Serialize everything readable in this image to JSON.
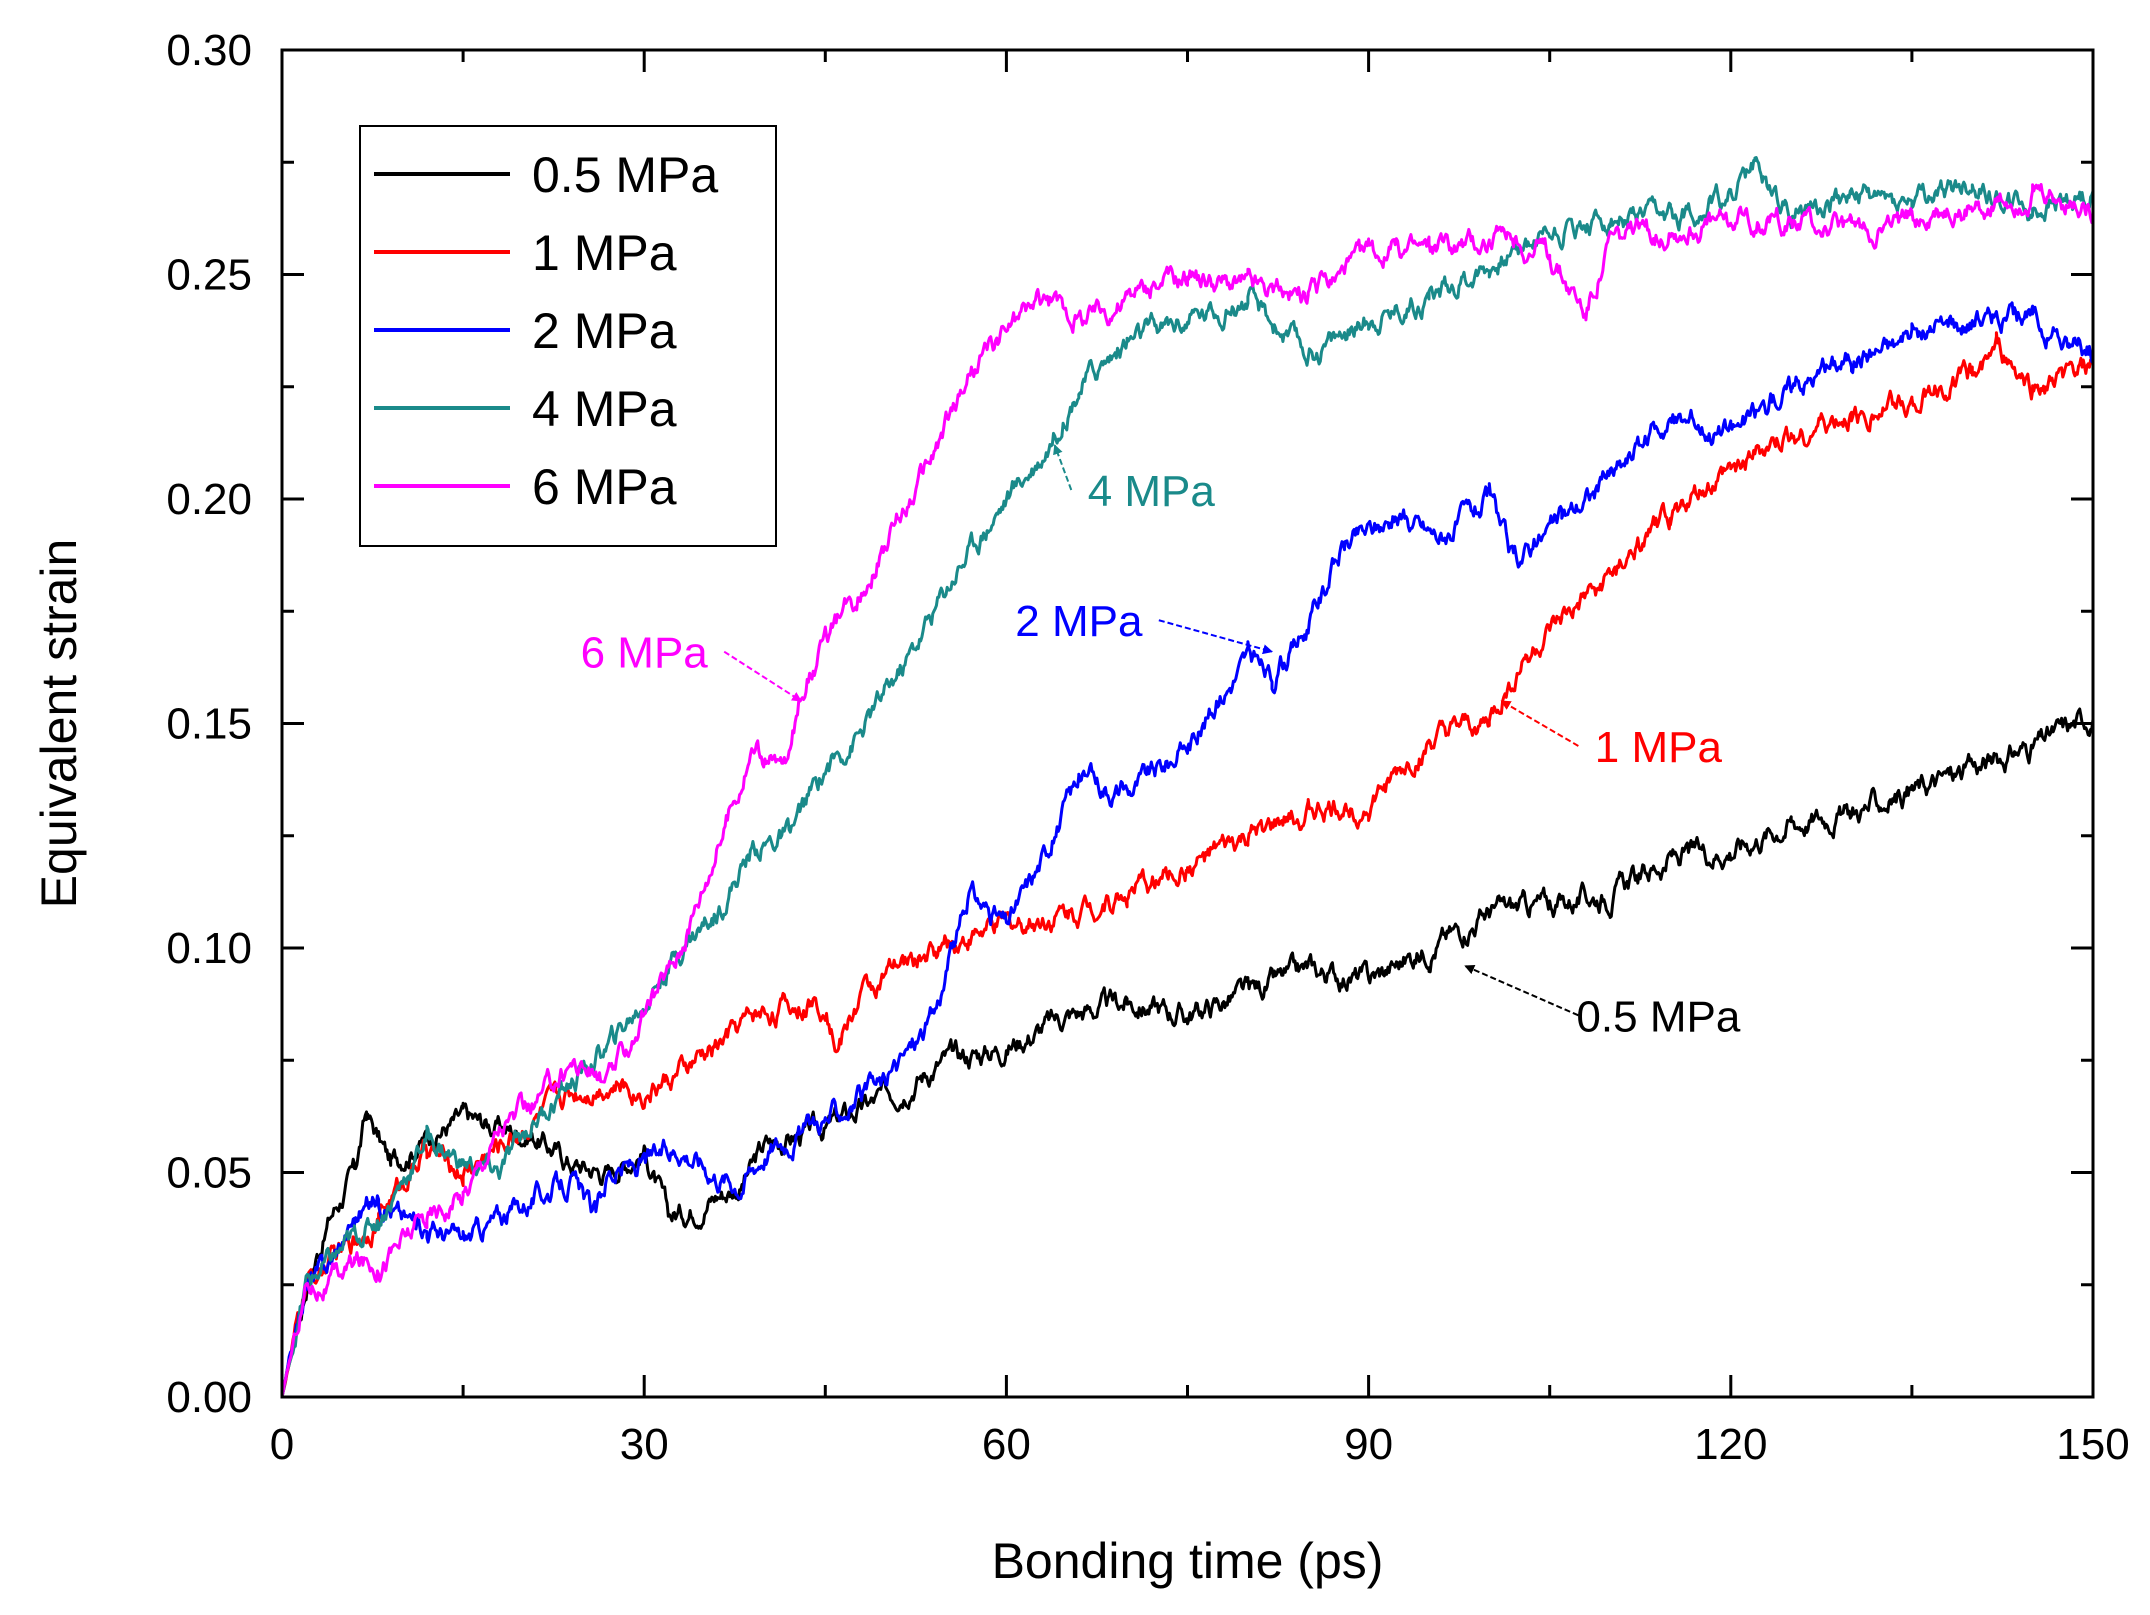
{
  "chart_data": {
    "type": "line",
    "title": "",
    "xlabel": "Bonding time (ps)",
    "ylabel": "Equivalent strain",
    "xlim": [
      0,
      150
    ],
    "ylim": [
      0,
      0.3
    ],
    "xticks": [
      0,
      30,
      60,
      90,
      120,
      150
    ],
    "xtick_labels": [
      "0",
      "30",
      "60",
      "90",
      "120",
      "150"
    ],
    "yticks": [
      0,
      0.05,
      0.1,
      0.15,
      0.2,
      0.25,
      0.3
    ],
    "ytick_labels": [
      "0.00",
      "0.05",
      "0.10",
      "0.15",
      "0.20",
      "0.25",
      "0.30"
    ],
    "grid": false,
    "legend_position": "top-left",
    "series": [
      {
        "name": "0.5 MPa",
        "color": "#000000",
        "x": [
          0,
          2,
          4,
          6,
          7,
          9,
          12,
          15,
          18,
          21,
          24,
          27,
          30,
          32,
          34,
          36,
          38,
          40,
          45,
          50,
          55,
          60,
          65,
          70,
          75,
          80,
          85,
          90,
          95,
          100,
          105,
          110,
          115,
          120,
          125,
          130,
          135,
          140,
          145,
          150
        ],
        "y": [
          0,
          0.025,
          0.04,
          0.05,
          0.063,
          0.052,
          0.058,
          0.062,
          0.06,
          0.058,
          0.052,
          0.05,
          0.055,
          0.04,
          0.042,
          0.045,
          0.047,
          0.056,
          0.06,
          0.067,
          0.075,
          0.078,
          0.085,
          0.088,
          0.085,
          0.09,
          0.095,
          0.093,
          0.1,
          0.108,
          0.11,
          0.112,
          0.12,
          0.122,
          0.128,
          0.13,
          0.135,
          0.14,
          0.145,
          0.152
        ]
      },
      {
        "name": "1 MPa",
        "color": "#ff0000",
        "x": [
          0,
          2,
          4,
          6,
          8,
          10,
          12,
          15,
          18,
          21,
          24,
          27,
          30,
          33,
          36,
          39,
          42,
          45,
          46,
          48,
          52,
          56,
          60,
          65,
          70,
          75,
          80,
          85,
          90,
          95,
          100,
          103,
          106,
          110,
          115,
          120,
          125,
          130,
          135,
          140,
          142,
          145,
          150
        ],
        "y": [
          0,
          0.025,
          0.03,
          0.035,
          0.04,
          0.048,
          0.055,
          0.05,
          0.056,
          0.062,
          0.068,
          0.07,
          0.068,
          0.072,
          0.078,
          0.085,
          0.087,
          0.088,
          0.078,
          0.09,
          0.097,
          0.102,
          0.105,
          0.108,
          0.112,
          0.118,
          0.124,
          0.13,
          0.132,
          0.145,
          0.15,
          0.165,
          0.172,
          0.182,
          0.196,
          0.206,
          0.214,
          0.218,
          0.222,
          0.228,
          0.233,
          0.224,
          0.23
        ]
      },
      {
        "name": "2 MPa",
        "color": "#0000ff",
        "x": [
          0,
          2,
          4,
          6,
          8,
          10,
          12,
          15,
          18,
          21,
          24,
          26,
          27,
          30,
          33,
          36,
          38,
          40,
          45,
          50,
          54,
          57,
          60,
          63,
          66,
          70,
          75,
          80,
          82,
          85,
          88,
          92,
          96,
          100,
          102,
          106,
          110,
          115,
          120,
          125,
          130,
          135,
          140,
          145,
          148,
          150
        ],
        "y": [
          0,
          0.025,
          0.03,
          0.04,
          0.045,
          0.04,
          0.038,
          0.035,
          0.04,
          0.045,
          0.048,
          0.04,
          0.05,
          0.052,
          0.056,
          0.05,
          0.048,
          0.055,
          0.062,
          0.07,
          0.085,
          0.112,
          0.105,
          0.12,
          0.138,
          0.135,
          0.145,
          0.165,
          0.16,
          0.172,
          0.19,
          0.196,
          0.192,
          0.2,
          0.186,
          0.196,
          0.205,
          0.218,
          0.215,
          0.225,
          0.232,
          0.236,
          0.24,
          0.24,
          0.234,
          0.233
        ]
      },
      {
        "name": "4 MPa",
        "color": "#1a8a8a",
        "x": [
          0,
          2,
          4,
          6,
          8,
          10,
          12,
          15,
          18,
          21,
          24,
          27,
          30,
          33,
          36,
          39,
          42,
          45,
          48,
          52,
          56,
          60,
          63,
          66,
          70,
          75,
          80,
          85,
          90,
          95,
          100,
          105,
          110,
          115,
          120,
          122,
          125,
          130,
          135,
          140,
          145,
          150
        ],
        "y": [
          0,
          0.025,
          0.03,
          0.035,
          0.04,
          0.048,
          0.058,
          0.052,
          0.05,
          0.062,
          0.07,
          0.078,
          0.088,
          0.1,
          0.108,
          0.122,
          0.125,
          0.14,
          0.148,
          0.165,
          0.185,
          0.2,
          0.21,
          0.225,
          0.235,
          0.24,
          0.244,
          0.232,
          0.24,
          0.245,
          0.252,
          0.26,
          0.262,
          0.262,
          0.268,
          0.274,
          0.264,
          0.268,
          0.266,
          0.27,
          0.264,
          0.268
        ]
      },
      {
        "name": "6 MPa",
        "color": "#ff00ff",
        "x": [
          0,
          2,
          4,
          6,
          8,
          10,
          12,
          15,
          18,
          21,
          24,
          27,
          30,
          33,
          35,
          37,
          39,
          41,
          42,
          43,
          45,
          48,
          51,
          54,
          57,
          60,
          63,
          66,
          70,
          75,
          80,
          85,
          90,
          95,
          100,
          105,
          108,
          110,
          115,
          120,
          125,
          130,
          135,
          140,
          145,
          150
        ],
        "y": [
          0,
          0.025,
          0.025,
          0.03,
          0.03,
          0.035,
          0.04,
          0.045,
          0.06,
          0.065,
          0.075,
          0.07,
          0.085,
          0.1,
          0.115,
          0.13,
          0.145,
          0.14,
          0.142,
          0.158,
          0.168,
          0.18,
          0.195,
          0.21,
          0.228,
          0.238,
          0.245,
          0.24,
          0.245,
          0.25,
          0.248,
          0.245,
          0.255,
          0.256,
          0.258,
          0.255,
          0.242,
          0.258,
          0.26,
          0.262,
          0.262,
          0.26,
          0.262,
          0.265,
          0.268,
          0.265
        ]
      }
    ],
    "annotations": [
      {
        "text": "6 MPa",
        "color": "#ff00ff",
        "x": 43,
        "y": 0.155,
        "label_x": 30,
        "label_y": 0.166
      },
      {
        "text": "4 MPa",
        "color": "#1a8a8a",
        "x": 64,
        "y": 0.212,
        "label_x": 72,
        "label_y": 0.202
      },
      {
        "text": "2 MPa",
        "color": "#0000ff",
        "x": 82,
        "y": 0.166,
        "label_x": 66,
        "label_y": 0.173
      },
      {
        "text": "1 MPa",
        "color": "#ff0000",
        "x": 101,
        "y": 0.155,
        "label_x": 114,
        "label_y": 0.145
      },
      {
        "text": "0.5 MPa",
        "color": "#000000",
        "x": 98,
        "y": 0.096,
        "label_x": 114,
        "label_y": 0.085
      }
    ]
  }
}
